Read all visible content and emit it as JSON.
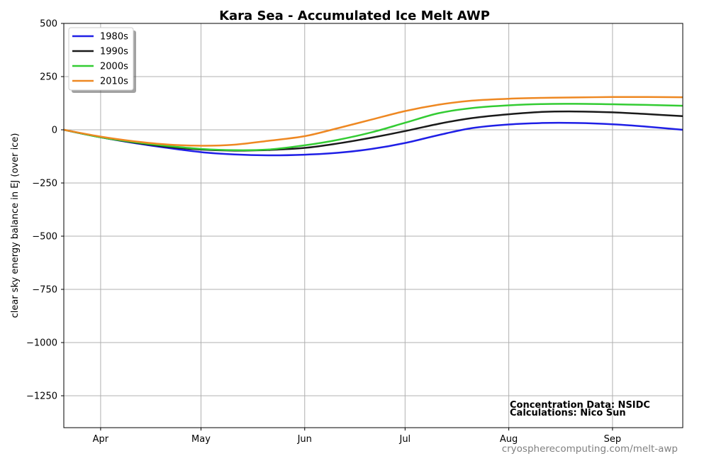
{
  "chart_data": {
    "type": "line",
    "title": "Kara Sea - Accumulated Ice Melt AWP",
    "xlabel": "",
    "ylabel": "clear sky energy balance in  EJ (over ice)",
    "x_unit": "date",
    "xlim": [
      "03-21",
      "09-22"
    ],
    "ylim": [
      -1400,
      500
    ],
    "x_ticks": [
      {
        "date": "04-01",
        "label": "Apr"
      },
      {
        "date": "05-01",
        "label": "May"
      },
      {
        "date": "06-01",
        "label": "Jun"
      },
      {
        "date": "07-01",
        "label": "Jul"
      },
      {
        "date": "08-01",
        "label": "Aug"
      },
      {
        "date": "09-01",
        "label": "Sep"
      }
    ],
    "y_ticks": [
      {
        "value": 500,
        "label": "500"
      },
      {
        "value": 250,
        "label": "250"
      },
      {
        "value": 0,
        "label": "0"
      },
      {
        "value": -250,
        "label": "−250"
      },
      {
        "value": -500,
        "label": "−500"
      },
      {
        "value": -750,
        "label": "−750"
      },
      {
        "value": -1000,
        "label": "−1000"
      },
      {
        "value": -1250,
        "label": "−1250"
      }
    ],
    "grid": true,
    "legend_position": "top-left",
    "x": [
      "03-21",
      "04-01",
      "04-11",
      "04-21",
      "05-01",
      "05-11",
      "05-21",
      "06-01",
      "06-11",
      "06-21",
      "07-01",
      "07-11",
      "07-21",
      "08-01",
      "08-11",
      "08-21",
      "09-01",
      "09-11",
      "09-22"
    ],
    "series": [
      {
        "name": "1980s",
        "color": "#1f1fe6",
        "values": [
          0,
          -35,
          -62,
          -85,
          -105,
          -116,
          -120,
          -117,
          -108,
          -90,
          -62,
          -25,
          8,
          25,
          32,
          32,
          26,
          15,
          0
        ]
      },
      {
        "name": "1990s",
        "color": "#1a1a1a",
        "values": [
          0,
          -35,
          -60,
          -80,
          -93,
          -98,
          -95,
          -85,
          -64,
          -37,
          -6,
          28,
          55,
          73,
          84,
          86,
          82,
          74,
          64
        ]
      },
      {
        "name": "2000s",
        "color": "#33cc33",
        "values": [
          0,
          -35,
          -58,
          -76,
          -90,
          -96,
          -93,
          -73,
          -47,
          -12,
          33,
          78,
          102,
          115,
          121,
          122,
          120,
          117,
          113
        ]
      },
      {
        "name": "2010s",
        "color": "#ee8822",
        "values": [
          0,
          -32,
          -54,
          -69,
          -75,
          -70,
          -52,
          -30,
          8,
          48,
          88,
          118,
          137,
          146,
          150,
          152,
          154,
          154,
          153
        ]
      }
    ],
    "annotations": [
      "Concentration Data: NSIDC",
      "Calculations: Nico Sun"
    ],
    "footer": "cryospherecomputing.com/melt-awp"
  }
}
